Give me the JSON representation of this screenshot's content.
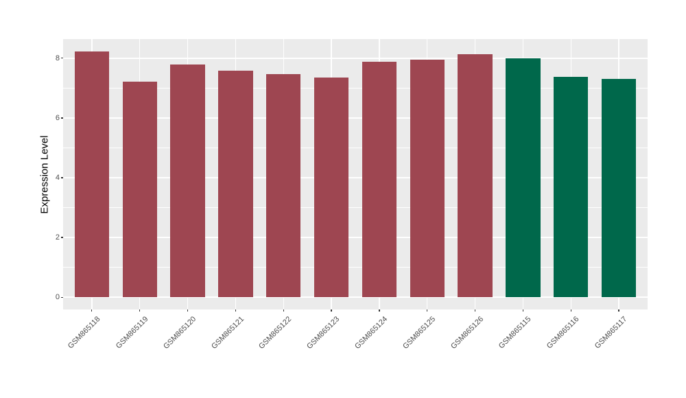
{
  "figure": {
    "background": "#FFFFFF",
    "panel_background": "#EBEBEB",
    "gridline_color": "#FFFFFF",
    "tick_mark_color": "#333333",
    "tick_label_color": "#4D4D4D",
    "axis_title_color": "#000000",
    "red_bar_color": "#9E4651",
    "green_bar_color": "#00684B"
  },
  "chart_data": {
    "type": "bar",
    "title": "",
    "xlabel": "",
    "ylabel": "Expression Level",
    "categories": [
      "GSM865118",
      "GSM865119",
      "GSM865120",
      "GSM865121",
      "GSM865122",
      "GSM865123",
      "GSM865124",
      "GSM865125",
      "GSM865126",
      "GSM865115",
      "GSM865116",
      "GSM865117"
    ],
    "values": [
      8.23,
      7.22,
      7.8,
      7.58,
      7.48,
      7.36,
      7.89,
      7.96,
      8.13,
      8.0,
      7.38,
      7.3
    ],
    "bar_colors": [
      "#9E4651",
      "#9E4651",
      "#9E4651",
      "#9E4651",
      "#9E4651",
      "#9E4651",
      "#9E4651",
      "#9E4651",
      "#9E4651",
      "#00684B",
      "#00684B",
      "#00684B"
    ],
    "yticks": [
      0,
      2,
      4,
      6,
      8
    ],
    "yticks_minor": [
      1,
      3,
      5,
      7
    ],
    "ylim": [
      -0.41,
      8.64
    ],
    "grid": "on",
    "legend": "none",
    "x_tick_label_angle": -45
  }
}
